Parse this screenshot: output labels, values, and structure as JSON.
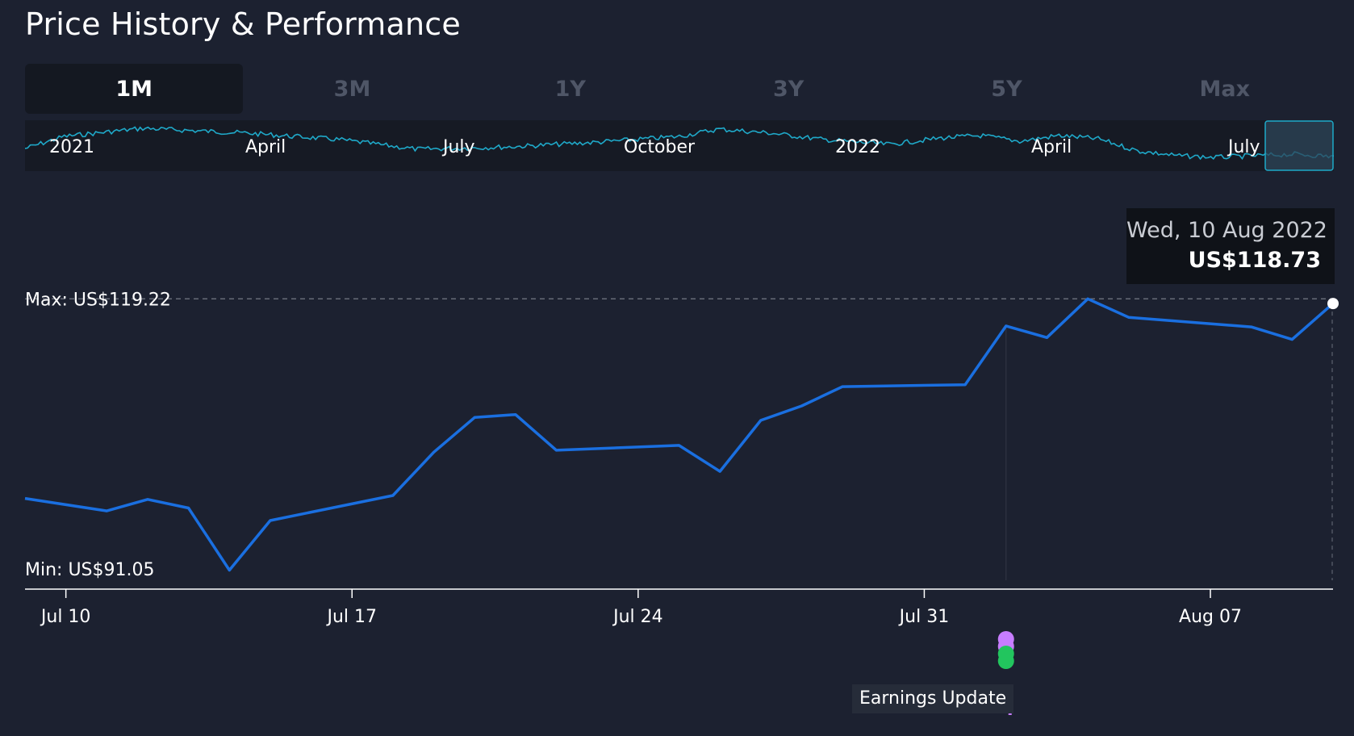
{
  "title": "Price History & Performance",
  "tabs": [
    {
      "label": "1M",
      "active": true
    },
    {
      "label": "3M",
      "active": false
    },
    {
      "label": "1Y",
      "active": false
    },
    {
      "label": "3Y",
      "active": false
    },
    {
      "label": "5Y",
      "active": false
    },
    {
      "label": "Max",
      "active": false
    }
  ],
  "navigator": {
    "labels": [
      "2021",
      "April",
      "July",
      "October",
      "2022",
      "April",
      "July"
    ]
  },
  "tooltip": {
    "date": "Wed, 10 Aug 2022",
    "price": "US$118.73"
  },
  "annotations": {
    "max_label": "Max: US$119.22",
    "min_label": "Min: US$91.05"
  },
  "event": {
    "label": "Earnings Update",
    "date": "2022-08-02",
    "marker_colors": [
      "#c77dff",
      "#c77dff",
      "#22c55e",
      "#22c55e"
    ]
  },
  "colors": {
    "line": "#1a6fe0",
    "navigator_line": "#1fa9c9",
    "background": "#1c2130",
    "event_accent": "#c77dff"
  },
  "chart_data": {
    "type": "line",
    "title": "Price History & Performance",
    "xlabel": "",
    "ylabel": "",
    "x_tick_labels": [
      "Jul 10",
      "Jul 17",
      "Jul 24",
      "Jul 31",
      "Aug 07"
    ],
    "x_ticks": [
      "2022-07-10",
      "2022-07-17",
      "2022-07-24",
      "2022-07-31",
      "2022-08-07"
    ],
    "xlim": [
      "2022-07-09",
      "2022-08-10"
    ],
    "ylim": [
      90,
      120.5
    ],
    "max": 119.22,
    "min": 91.05,
    "grid": false,
    "series": [
      {
        "points": [
          {
            "x": "2022-07-09",
            "y": 98.5
          },
          {
            "x": "2022-07-11",
            "y": 97.2
          },
          {
            "x": "2022-07-12",
            "y": 98.4
          },
          {
            "x": "2022-07-13",
            "y": 97.5
          },
          {
            "x": "2022-07-14",
            "y": 91.05
          },
          {
            "x": "2022-07-15",
            "y": 96.2
          },
          {
            "x": "2022-07-18",
            "y": 98.8
          },
          {
            "x": "2022-07-19",
            "y": 103.3
          },
          {
            "x": "2022-07-20",
            "y": 106.9
          },
          {
            "x": "2022-07-21",
            "y": 107.2
          },
          {
            "x": "2022-07-22",
            "y": 103.5
          },
          {
            "x": "2022-07-25",
            "y": 104.0
          },
          {
            "x": "2022-07-26",
            "y": 101.3
          },
          {
            "x": "2022-07-27",
            "y": 106.6
          },
          {
            "x": "2022-07-28",
            "y": 108.1
          },
          {
            "x": "2022-07-29",
            "y": 110.1
          },
          {
            "x": "2022-08-01",
            "y": 110.3
          },
          {
            "x": "2022-08-02",
            "y": 116.4
          },
          {
            "x": "2022-08-03",
            "y": 115.2
          },
          {
            "x": "2022-08-04",
            "y": 119.22
          },
          {
            "x": "2022-08-05",
            "y": 117.3
          },
          {
            "x": "2022-08-08",
            "y": 116.3
          },
          {
            "x": "2022-08-09",
            "y": 115.0
          },
          {
            "x": "2022-08-10",
            "y": 118.73
          }
        ]
      }
    ]
  }
}
